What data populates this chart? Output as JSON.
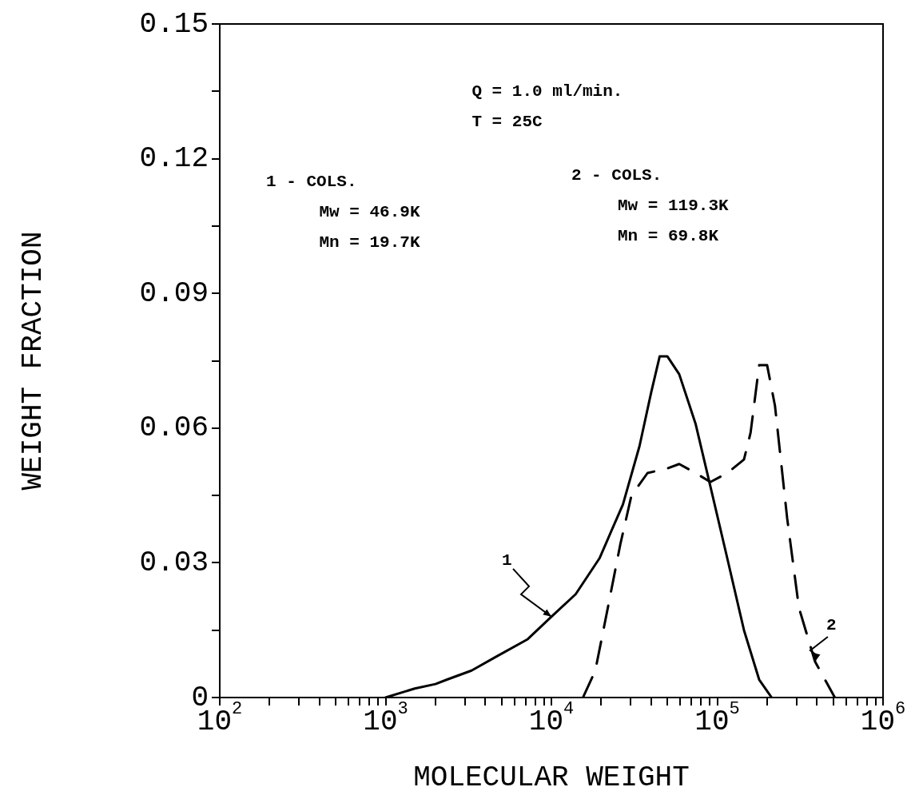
{
  "chart_data": {
    "type": "line",
    "xlabel": "MOLECULAR WEIGHT",
    "ylabel": "WEIGHT FRACTION",
    "log": "x",
    "xlim": [
      100,
      1000000
    ],
    "xticks": [
      {
        "value": 100,
        "label": "10$^{2}$"
      },
      {
        "value": 200,
        "label": null
      },
      {
        "value": 300,
        "label": null
      },
      {
        "value": 400,
        "label": null
      },
      {
        "value": 500,
        "label": null
      },
      {
        "value": 600,
        "label": null
      },
      {
        "value": 700,
        "label": null
      },
      {
        "value": 800,
        "label": null
      },
      {
        "value": 900,
        "label": null
      },
      {
        "value": 1000,
        "label": "10$^{3}$"
      },
      {
        "value": 2000,
        "label": null
      },
      {
        "value": 3000,
        "label": null
      },
      {
        "value": 4000,
        "label": null
      },
      {
        "value": 5000,
        "label": null
      },
      {
        "value": 6000,
        "label": null
      },
      {
        "value": 7000,
        "label": null
      },
      {
        "value": 8000,
        "label": null
      },
      {
        "value": 9000,
        "label": null
      },
      {
        "value": 10000,
        "label": "10$^{4}$"
      },
      {
        "value": 20000,
        "label": null
      },
      {
        "value": 30000,
        "label": null
      },
      {
        "value": 40000,
        "label": null
      },
      {
        "value": 50000,
        "label": null
      },
      {
        "value": 60000,
        "label": null
      },
      {
        "value": 70000,
        "label": null
      },
      {
        "value": 80000,
        "label": null
      },
      {
        "value": 90000,
        "label": null
      },
      {
        "value": 100000,
        "label": "10$^{5}$"
      },
      {
        "value": 200000,
        "label": null
      },
      {
        "value": 300000,
        "label": null
      },
      {
        "value": 400000,
        "label": null
      },
      {
        "value": 500000,
        "label": null
      },
      {
        "value": 600000,
        "label": null
      },
      {
        "value": 700000,
        "label": null
      },
      {
        "value": 800000,
        "label": null
      },
      {
        "value": 900000,
        "label": null
      },
      {
        "value": 1000000,
        "label": "10$^{6}$"
      }
    ],
    "ylim": [
      0,
      0.15
    ],
    "yticks": [
      0,
      {
        "value": 0.015,
        "label": null
      },
      0.03,
      {
        "value": 0.045,
        "label": null
      },
      0.06,
      {
        "value": 0.075,
        "label": null
      },
      0.09,
      {
        "value": 0.105,
        "label": null
      },
      0.12,
      {
        "value": 0.135,
        "label": null
      },
      0.15
    ],
    "grid": false,
    "legend": false,
    "marker": "none",
    "series": [
      {
        "color": "#000000",
        "line_style": "solid",
        "x": [
          1000,
          1500,
          2000,
          2350,
          3300,
          4600,
          7200,
          10000,
          14000,
          19500,
          27000,
          34000,
          40000,
          45000,
          50000,
          59000,
          74000,
          91000,
          115000,
          145000,
          179000,
          213000
        ],
        "values": [
          0,
          0.002,
          0.003,
          0.004,
          0.006,
          0.009,
          0.013,
          0.018,
          0.023,
          0.031,
          0.043,
          0.056,
          0.068,
          0.076,
          0.076,
          0.072,
          0.061,
          0.047,
          0.031,
          0.015,
          0.004,
          0
        ]
      },
      {
        "color": "#000000",
        "line_style": "dashed",
        "x": [
          15500,
          18400,
          21900,
          26000,
          30400,
          38000,
          50000,
          59000,
          74000,
          91000,
          115000,
          145000,
          159000,
          179000,
          200000,
          223000,
          264000,
          311000,
          389000,
          512000
        ],
        "values": [
          0,
          0.006,
          0.02,
          0.034,
          0.045,
          0.05,
          0.051,
          0.052,
          0.05,
          0.048,
          0.05,
          0.053,
          0.059,
          0.074,
          0.074,
          0.065,
          0.04,
          0.02,
          0.008,
          0
        ]
      }
    ],
    "annotations": [
      "Q = 1.0 ml/min.",
      "T = 25C",
      "1 - COLS.",
      "Mw = 46.9K",
      "Mn = 19.7K",
      "2 - COLS.",
      "Mw = 119.3K",
      "Mn = 69.8K",
      {
        "text": "1",
        "x": 10000,
        "y": 0.018
      },
      {
        "text": "2",
        "x": 389000,
        "y": 0.008
      }
    ]
  }
}
